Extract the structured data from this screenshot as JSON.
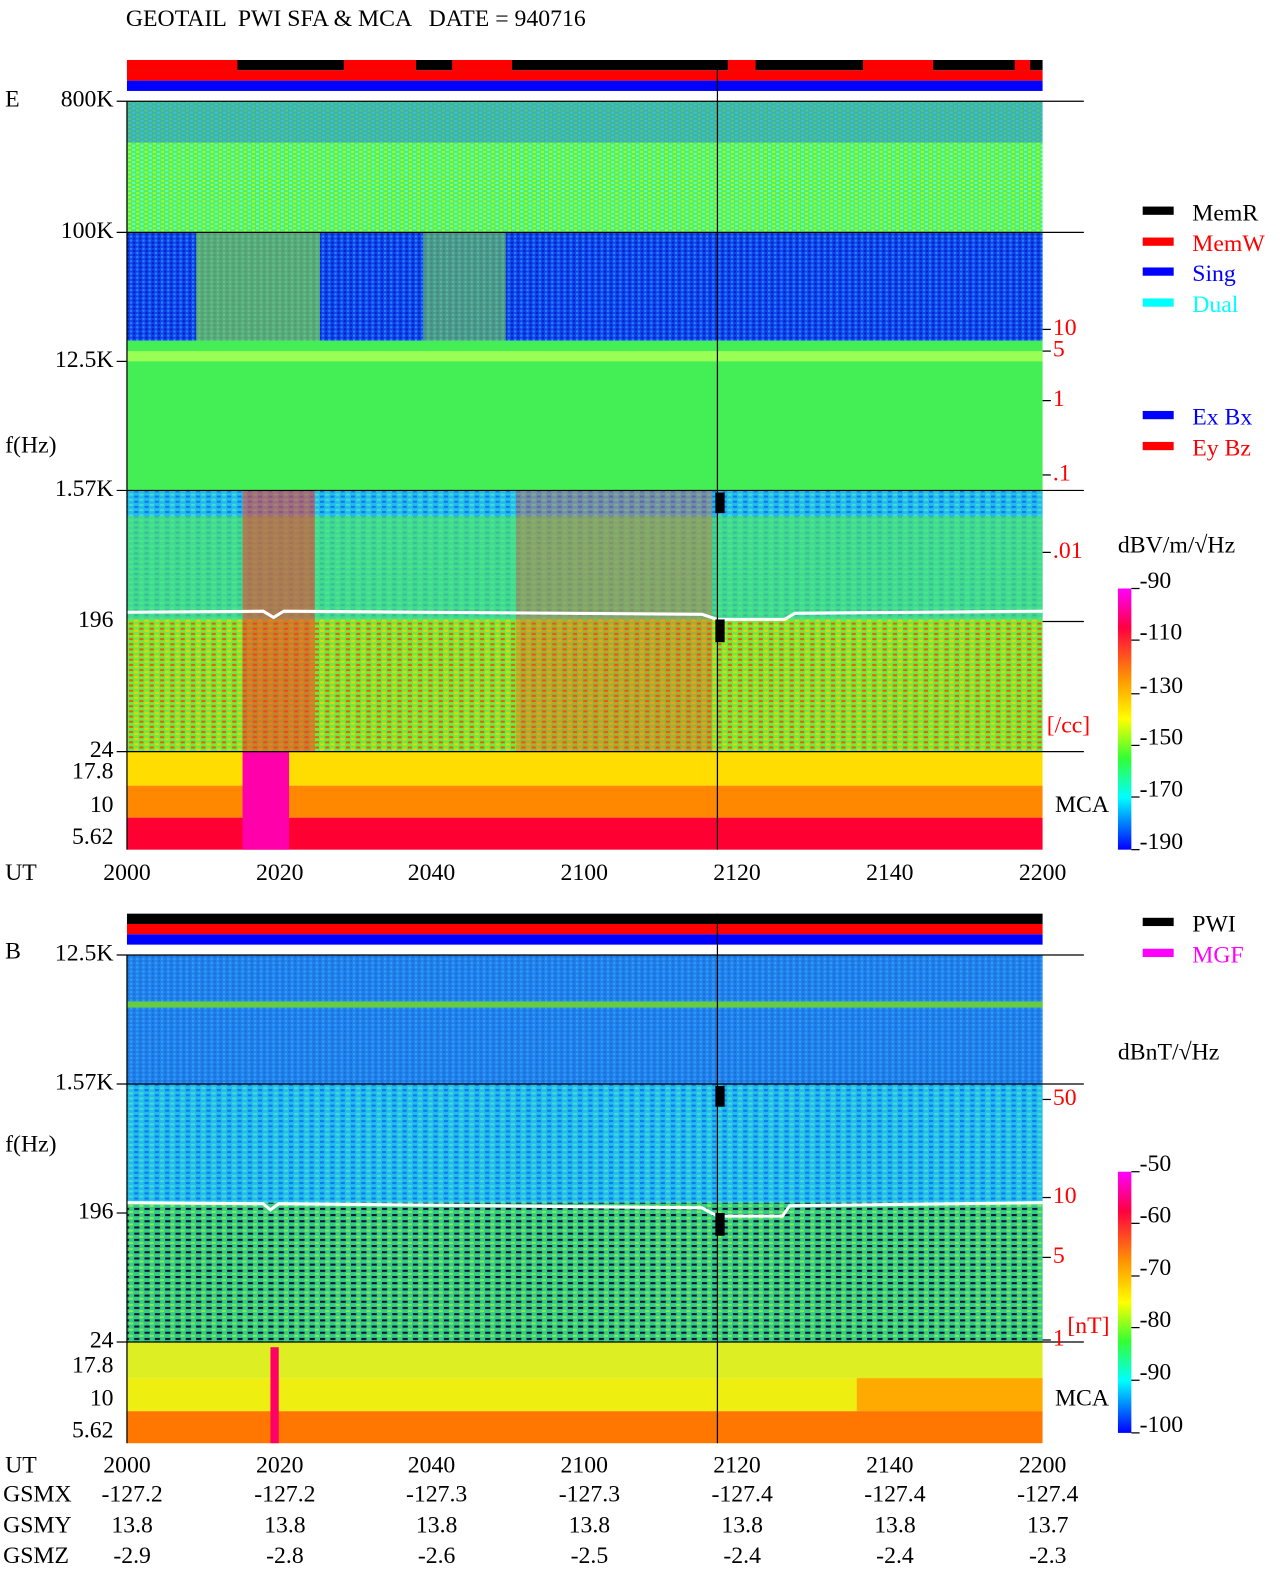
{
  "header": {
    "title": "GEOTAIL  PWI SFA & MCA   DATE = 940716"
  },
  "e_panel": {
    "label": "E",
    "y_label": "f(Hz)",
    "x_label": "UT",
    "y_ticks": [
      "800K",
      "100K",
      "12.5K",
      "1.57K",
      "196",
      "24",
      "17.8",
      "10",
      "5.62"
    ],
    "x_ticks": [
      "2000",
      "2020",
      "2040",
      "2100",
      "2120",
      "2140",
      "2200"
    ],
    "density_ticks": [
      "10",
      "5",
      "1",
      ".1",
      ".01"
    ],
    "density_unit": "[/cc]",
    "mca": "MCA",
    "legend_mode": [
      "MemR",
      "MemW",
      "Sing",
      "Dual"
    ],
    "legend_comp": [
      "Ex Bx",
      "Ey Bz"
    ],
    "colorbar_unit": "dBV/m/√Hz",
    "colorbar_ticks": [
      "-90",
      "-110",
      "-130",
      "-150",
      "-170",
      "-190"
    ]
  },
  "b_panel": {
    "label": "B",
    "y_label": "f(Hz)",
    "x_label": "UT",
    "y_ticks": [
      "12.5K",
      "1.57K",
      "196",
      "24",
      "17.8",
      "10",
      "5.62"
    ],
    "x_ticks": [
      "2000",
      "2020",
      "2040",
      "2100",
      "2120",
      "2140",
      "2200"
    ],
    "field_ticks": [
      "50",
      "10",
      "5",
      "1"
    ],
    "field_unit": "[nT]",
    "mca": "MCA",
    "legend": [
      "PWI",
      "MGF"
    ],
    "colorbar_unit": "dBnT/√Hz",
    "colorbar_ticks": [
      "-50",
      "-60",
      "-70",
      "-80",
      "-90",
      "-100"
    ]
  },
  "orbit": {
    "rows": [
      {
        "label": "GSMX",
        "values": [
          "-127.2",
          "-127.2",
          "-127.3",
          "-127.3",
          "-127.4",
          "-127.4",
          "-127.4"
        ]
      },
      {
        "label": "GSMY",
        "values": [
          "13.8",
          "13.8",
          "13.8",
          "13.8",
          "13.8",
          "13.8",
          "13.7"
        ]
      },
      {
        "label": "GSMZ",
        "values": [
          "-2.9",
          "-2.8",
          "-2.6",
          "-2.5",
          "-2.4",
          "-2.4",
          "-2.3"
        ]
      }
    ]
  }
}
